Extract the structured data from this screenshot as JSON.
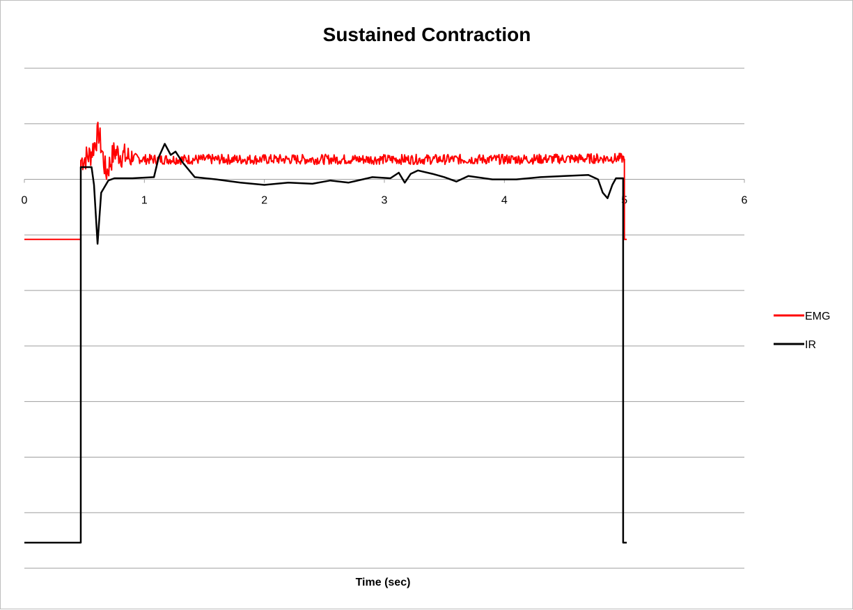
{
  "chart_data": {
    "type": "line",
    "title": "Sustained Contraction",
    "xlabel": "Time (sec)",
    "ylabel": "",
    "xlim": [
      0,
      6
    ],
    "ylim": [
      -3.5,
      1.0
    ],
    "y_gridlines": [
      1.0,
      0.5,
      0.0,
      -0.5,
      -1.0,
      -1.5,
      -2.0,
      -2.5,
      -3.0,
      -3.5
    ],
    "grid": true,
    "legend_position": "right",
    "x_ticks": [
      "0",
      "1",
      "2",
      "3",
      "4",
      "5",
      "6"
    ],
    "series": [
      {
        "name": "EMG",
        "color": "#ff0000",
        "baseline": -0.54,
        "onset": 0.47,
        "offset": 5.0,
        "plateau": 0.18,
        "points": [
          [
            0,
            -0.54
          ],
          [
            0.47,
            -0.54
          ],
          [
            0.47,
            0.17
          ],
          [
            0.55,
            0.22
          ],
          [
            0.62,
            0.42
          ],
          [
            0.68,
            0.05
          ],
          [
            0.75,
            0.25
          ],
          [
            0.85,
            0.2
          ],
          [
            1.0,
            0.18
          ],
          [
            2.0,
            0.18
          ],
          [
            3.0,
            0.18
          ],
          [
            4.0,
            0.18
          ],
          [
            5.0,
            0.19
          ],
          [
            5.0,
            -0.54
          ],
          [
            5.02,
            -0.54
          ]
        ]
      },
      {
        "name": "IR",
        "color": "#000000",
        "points": [
          [
            0,
            -3.27
          ],
          [
            0.47,
            -3.27
          ],
          [
            0.47,
            0.11
          ],
          [
            0.56,
            0.11
          ],
          [
            0.58,
            -0.05
          ],
          [
            0.61,
            -0.58
          ],
          [
            0.64,
            -0.12
          ],
          [
            0.7,
            -0.01
          ],
          [
            0.75,
            0.01
          ],
          [
            0.9,
            0.01
          ],
          [
            1.08,
            0.02
          ],
          [
            1.12,
            0.2
          ],
          [
            1.17,
            0.32
          ],
          [
            1.22,
            0.22
          ],
          [
            1.26,
            0.25
          ],
          [
            1.32,
            0.15
          ],
          [
            1.42,
            0.02
          ],
          [
            1.6,
            0.0
          ],
          [
            1.8,
            -0.03
          ],
          [
            2.0,
            -0.05
          ],
          [
            2.2,
            -0.03
          ],
          [
            2.4,
            -0.04
          ],
          [
            2.55,
            -0.01
          ],
          [
            2.7,
            -0.03
          ],
          [
            2.9,
            0.02
          ],
          [
            3.05,
            0.01
          ],
          [
            3.12,
            0.06
          ],
          [
            3.17,
            -0.03
          ],
          [
            3.22,
            0.05
          ],
          [
            3.28,
            0.08
          ],
          [
            3.4,
            0.05
          ],
          [
            3.5,
            0.02
          ],
          [
            3.6,
            -0.02
          ],
          [
            3.7,
            0.03
          ],
          [
            3.9,
            0.0
          ],
          [
            4.1,
            0.0
          ],
          [
            4.3,
            0.02
          ],
          [
            4.5,
            0.03
          ],
          [
            4.7,
            0.04
          ],
          [
            4.78,
            0.0
          ],
          [
            4.82,
            -0.12
          ],
          [
            4.86,
            -0.17
          ],
          [
            4.9,
            -0.05
          ],
          [
            4.93,
            0.01
          ],
          [
            4.99,
            0.01
          ],
          [
            4.99,
            -3.27
          ],
          [
            5.02,
            -3.27
          ]
        ]
      }
    ]
  }
}
